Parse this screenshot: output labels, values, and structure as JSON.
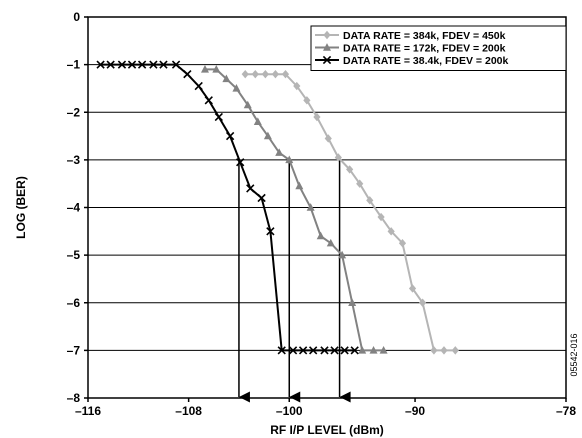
{
  "chart_data": {
    "type": "line",
    "xlabel": "RF I/P LEVEL (dBm)",
    "ylabel": "LOG (BER)",
    "xlim": [
      -116,
      -78
    ],
    "ylim": [
      -8,
      0
    ],
    "x_ticks": [
      -116,
      -108,
      -100,
      -90,
      -78
    ],
    "x_tick_labels": [
      "–116",
      "–108",
      "–100",
      "–90",
      "–78"
    ],
    "y_ticks": [
      0,
      -1,
      -2,
      -3,
      -4,
      -5,
      -6,
      -7,
      -8
    ],
    "y_tick_labels": [
      "0",
      "–1",
      "–2",
      "–3",
      "–4",
      "–5",
      "–6",
      "–7",
      "–8"
    ],
    "grid": "horizontal",
    "legend_position": "top-right",
    "figure_id": "05542-016",
    "series": [
      {
        "name": "DATA RATE = 384k, FDEV = 450k",
        "color": "#b5b5b5",
        "marker": "diamond",
        "points": [
          [
            -103.5,
            -1.2
          ],
          [
            -102.7,
            -1.2
          ],
          [
            -101.9,
            -1.2
          ],
          [
            -101.1,
            -1.2
          ],
          [
            -100.3,
            -1.2
          ],
          [
            -99.4,
            -1.45
          ],
          [
            -98.6,
            -1.75
          ],
          [
            -97.8,
            -2.1
          ],
          [
            -96.9,
            -2.55
          ],
          [
            -96.1,
            -2.95
          ],
          [
            -95.2,
            -3.2
          ],
          [
            -94.4,
            -3.5
          ],
          [
            -93.6,
            -3.85
          ],
          [
            -92.7,
            -4.2
          ],
          [
            -91.9,
            -4.5
          ],
          [
            -91.0,
            -4.75
          ],
          [
            -90.2,
            -5.7
          ],
          [
            -89.4,
            -6.0
          ],
          [
            -88.5,
            -7.0
          ],
          [
            -87.7,
            -7.0
          ],
          [
            -86.8,
            -7.0
          ]
        ]
      },
      {
        "name": "DATA RATE = 172k, FDEV = 200k",
        "color": "#828282",
        "marker": "triangle",
        "points": [
          [
            -106.7,
            -1.1
          ],
          [
            -105.8,
            -1.1
          ],
          [
            -105.0,
            -1.3
          ],
          [
            -104.2,
            -1.5
          ],
          [
            -103.3,
            -1.85
          ],
          [
            -102.5,
            -2.2
          ],
          [
            -101.7,
            -2.5
          ],
          [
            -100.8,
            -2.85
          ],
          [
            -100.0,
            -3.0
          ],
          [
            -99.2,
            -3.55
          ],
          [
            -98.3,
            -4.0
          ],
          [
            -97.5,
            -4.6
          ],
          [
            -96.7,
            -4.75
          ],
          [
            -95.8,
            -5.0
          ],
          [
            -95.0,
            -6.0
          ],
          [
            -94.2,
            -7.0
          ],
          [
            -93.3,
            -7.0
          ],
          [
            -92.5,
            -7.0
          ]
        ]
      },
      {
        "name": "DATA RATE = 38.4k, FDEV = 200k",
        "color": "#000000",
        "marker": "x",
        "points": [
          [
            -115.0,
            -1.0
          ],
          [
            -114.2,
            -1.0
          ],
          [
            -113.3,
            -1.0
          ],
          [
            -112.5,
            -1.0
          ],
          [
            -111.7,
            -1.0
          ],
          [
            -110.8,
            -1.0
          ],
          [
            -110.0,
            -1.0
          ],
          [
            -109.0,
            -1.0
          ],
          [
            -108.1,
            -1.2
          ],
          [
            -107.2,
            -1.45
          ],
          [
            -106.4,
            -1.75
          ],
          [
            -105.6,
            -2.1
          ],
          [
            -104.7,
            -2.5
          ],
          [
            -103.9,
            -3.05
          ],
          [
            -103.1,
            -3.6
          ],
          [
            -102.2,
            -3.8
          ],
          [
            -101.5,
            -4.5
          ],
          [
            -100.6,
            -7.0
          ],
          [
            -99.7,
            -7.0
          ],
          [
            -98.9,
            -7.0
          ],
          [
            -98.1,
            -7.0
          ],
          [
            -97.2,
            -7.0
          ],
          [
            -96.4,
            -7.0
          ],
          [
            -95.6,
            -7.0
          ],
          [
            -94.8,
            -7.0
          ]
        ]
      }
    ],
    "annotations": [
      {
        "type": "drop-arrow",
        "x": -104.0,
        "y_from": -3.0,
        "y_to": -8.0
      },
      {
        "type": "drop-arrow",
        "x": -100.0,
        "y_from": -3.0,
        "y_to": -8.0
      },
      {
        "type": "drop-arrow",
        "x": -96.0,
        "y_from": -3.0,
        "y_to": -8.0
      }
    ]
  }
}
